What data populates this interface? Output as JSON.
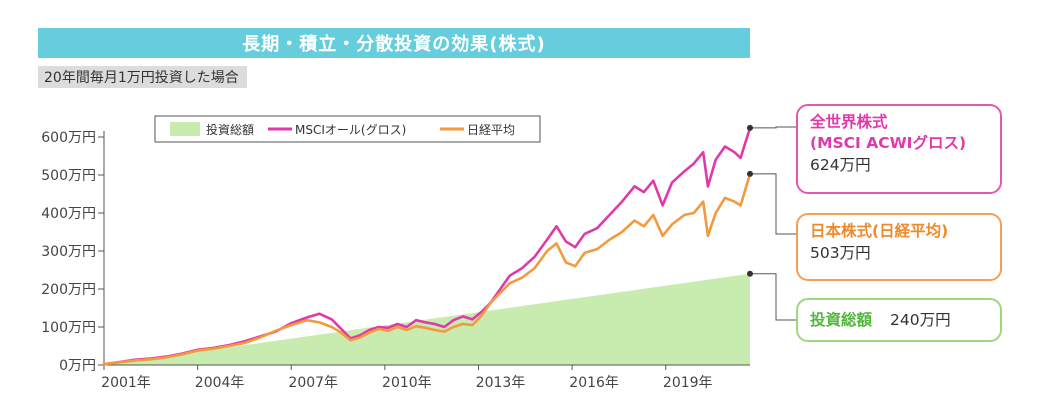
{
  "title": "長期・積立・分散投資の効果(株式)",
  "subtitle": "20年間毎月1万円投資した場合",
  "chart_data": {
    "type": "line",
    "x_unit": "year",
    "x_range": [
      2001,
      2021.7
    ],
    "xticks": [
      2001,
      2004,
      2007,
      2010,
      2013,
      2016,
      2019
    ],
    "xtick_labels": [
      "2001年",
      "2004年",
      "2007年",
      "2010年",
      "2013年",
      "2016年",
      "2019年"
    ],
    "ylim": [
      0,
      600
    ],
    "yticks": [
      0,
      100,
      200,
      300,
      400,
      500,
      600
    ],
    "ytick_labels": [
      "0万円",
      "100万円",
      "200万円",
      "300万円",
      "400万円",
      "500万円",
      "600万円"
    ],
    "legend_position": "top-left",
    "series": [
      {
        "name": "投資総額",
        "kind": "area",
        "color": "#c8ebb0",
        "x": [
          2001,
          2021.7
        ],
        "y": [
          0,
          240
        ]
      },
      {
        "name": "MSCIオール(グロス)",
        "kind": "line",
        "color": "#e03aaa",
        "x": [
          2001.0,
          2001.5,
          2002.0,
          2002.5,
          2003.0,
          2003.5,
          2004.0,
          2004.5,
          2005.0,
          2005.5,
          2006.0,
          2006.5,
          2007.0,
          2007.5,
          2007.9,
          2008.3,
          2008.6,
          2008.9,
          2009.2,
          2009.5,
          2009.8,
          2010.1,
          2010.4,
          2010.7,
          2011.0,
          2011.3,
          2011.6,
          2011.9,
          2012.2,
          2012.5,
          2012.8,
          2013.1,
          2013.4,
          2013.7,
          2014.0,
          2014.4,
          2014.8,
          2015.2,
          2015.5,
          2015.8,
          2016.1,
          2016.4,
          2016.8,
          2017.2,
          2017.6,
          2018.0,
          2018.3,
          2018.6,
          2018.9,
          2019.2,
          2019.6,
          2019.9,
          2020.2,
          2020.35,
          2020.6,
          2020.9,
          2021.2,
          2021.4,
          2021.7
        ],
        "y": [
          2,
          8,
          14,
          17,
          22,
          30,
          40,
          45,
          52,
          62,
          75,
          88,
          110,
          125,
          135,
          120,
          95,
          70,
          78,
          92,
          100,
          98,
          108,
          100,
          118,
          112,
          108,
          100,
          118,
          128,
          120,
          140,
          165,
          200,
          235,
          255,
          285,
          330,
          365,
          325,
          310,
          345,
          360,
          395,
          430,
          470,
          455,
          485,
          420,
          480,
          510,
          530,
          560,
          470,
          540,
          575,
          560,
          545,
          624
        ]
      },
      {
        "name": "日経平均",
        "kind": "line",
        "color": "#f39a3f",
        "x": [
          2001.0,
          2001.5,
          2002.0,
          2002.5,
          2003.0,
          2003.5,
          2004.0,
          2004.5,
          2005.0,
          2005.5,
          2006.0,
          2006.5,
          2007.0,
          2007.5,
          2007.9,
          2008.3,
          2008.6,
          2008.9,
          2009.2,
          2009.5,
          2009.8,
          2010.1,
          2010.4,
          2010.7,
          2011.0,
          2011.3,
          2011.6,
          2011.9,
          2012.2,
          2012.5,
          2012.8,
          2013.1,
          2013.4,
          2013.7,
          2014.0,
          2014.4,
          2014.8,
          2015.2,
          2015.5,
          2015.8,
          2016.1,
          2016.4,
          2016.8,
          2017.2,
          2017.6,
          2018.0,
          2018.3,
          2018.6,
          2018.9,
          2019.2,
          2019.6,
          2019.9,
          2020.2,
          2020.35,
          2020.6,
          2020.9,
          2021.2,
          2021.4,
          2021.7
        ],
        "y": [
          2,
          7,
          12,
          15,
          20,
          28,
          38,
          43,
          50,
          58,
          72,
          90,
          105,
          118,
          112,
          100,
          85,
          65,
          72,
          85,
          95,
          90,
          100,
          92,
          102,
          98,
          92,
          88,
          100,
          108,
          105,
          130,
          165,
          190,
          215,
          230,
          255,
          300,
          320,
          270,
          260,
          295,
          305,
          330,
          350,
          380,
          365,
          395,
          340,
          370,
          395,
          400,
          430,
          340,
          400,
          440,
          430,
          420,
          503
        ]
      }
    ]
  },
  "callouts": {
    "msci": {
      "line1": "全世界株式",
      "line2": "(MSCI ACWIグロス)",
      "value": "624万円"
    },
    "nikkei": {
      "line1": "日本株式(日経平均)",
      "value": "503万円"
    },
    "total": {
      "label": "投資総額",
      "value": "240万円"
    }
  },
  "colors": {
    "banner": "#66cddd",
    "msci": "#e03aaa",
    "nikkei": "#f39a3f",
    "total_fill": "#c8ebb0",
    "total_border": "#9ed77f"
  }
}
